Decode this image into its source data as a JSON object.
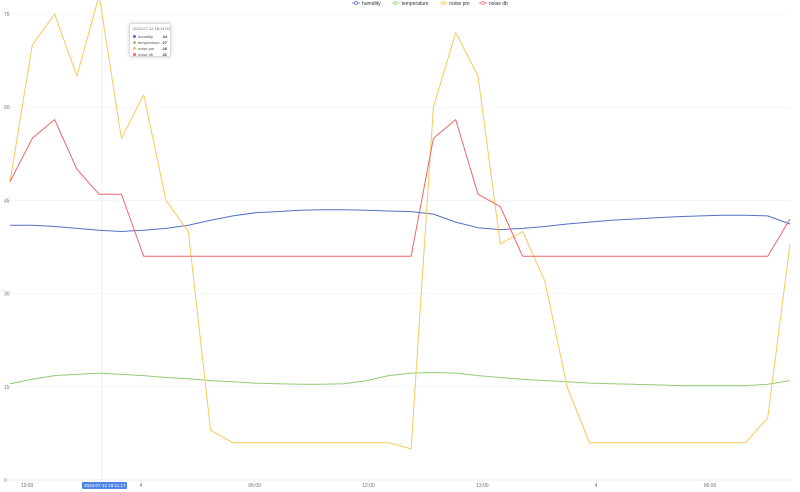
{
  "chart_data": {
    "type": "line",
    "legend": {
      "position": "top-center",
      "items": [
        "humidity",
        "temperature",
        "noise pm",
        "noise db"
      ]
    },
    "colors": {
      "humidity": "#5470c6",
      "temperature": "#91cc75",
      "noise pm": "#fac858",
      "noise db": "#ee6666"
    },
    "ylim": [
      0,
      75
    ],
    "y_ticks": [
      "75",
      "60",
      "45",
      "30",
      "15",
      "0"
    ],
    "x_ticks": [
      "12:00",
      "4",
      "06:00",
      "12:00",
      "13:00",
      "4",
      "06:00"
    ],
    "grid": true,
    "series": [
      {
        "name": "humidity",
        "values": [
          41,
          41,
          40.8,
          40.5,
          40.2,
          40,
          40.2,
          40.5,
          41,
          41.8,
          42.5,
          43,
          43.2,
          43.4,
          43.5,
          43.5,
          43.4,
          43.3,
          43.2,
          42.8,
          41.5,
          40.6,
          40.3,
          40.5,
          40.8,
          41.2,
          41.5,
          41.8,
          42,
          42.2,
          42.4,
          42.5,
          42.6,
          42.6,
          42.5,
          41.2
        ]
      },
      {
        "name": "temperature",
        "values": [
          15.5,
          16.2,
          16.8,
          17,
          17.2,
          17,
          16.8,
          16.5,
          16.3,
          16,
          15.8,
          15.6,
          15.5,
          15.4,
          15.4,
          15.5,
          16,
          16.8,
          17.2,
          17.3,
          17.2,
          16.8,
          16.5,
          16.2,
          16,
          15.8,
          15.6,
          15.5,
          15.4,
          15.3,
          15.2,
          15.2,
          15.2,
          15.2,
          15.4,
          16
        ]
      },
      {
        "name": "noise pm",
        "values": [
          48,
          70,
          75,
          65,
          78,
          55,
          62,
          45,
          40,
          8,
          6,
          6,
          6,
          6,
          6,
          6,
          6,
          6,
          5,
          60,
          72,
          65,
          38,
          40,
          32,
          15,
          6,
          6,
          6,
          6,
          6,
          6,
          6,
          6,
          10,
          38
        ]
      },
      {
        "name": "noise db",
        "values": [
          48,
          55,
          58,
          50,
          46,
          46,
          36,
          36,
          36,
          36,
          36,
          36,
          36,
          36,
          36,
          36,
          36,
          36,
          36,
          55,
          58,
          46,
          44,
          36,
          36,
          36,
          36,
          36,
          36,
          36,
          36,
          36,
          36,
          36,
          36,
          42
        ]
      }
    ]
  },
  "tooltip": {
    "title": "2023-07-12 18:11:00",
    "rows": [
      {
        "name": "humidity",
        "value": "44"
      },
      {
        "name": "temperature",
        "value": "27"
      },
      {
        "name": "noise pm",
        "value": "26"
      },
      {
        "name": "noise db",
        "value": "41"
      }
    ]
  },
  "axis_pointer_label": "2023-07-12 18:11:17"
}
